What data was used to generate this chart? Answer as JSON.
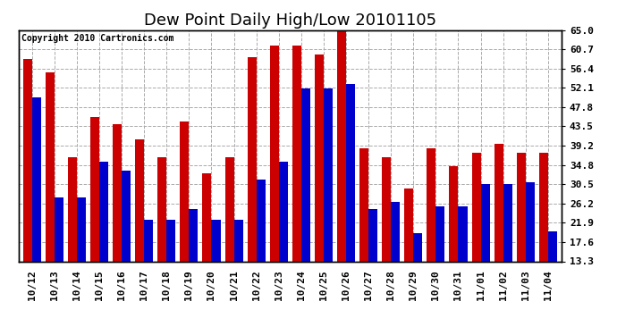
{
  "title": "Dew Point Daily High/Low 20101105",
  "copyright": "Copyright 2010 Cartronics.com",
  "dates": [
    "10/12",
    "10/13",
    "10/14",
    "10/15",
    "10/16",
    "10/17",
    "10/18",
    "10/19",
    "10/20",
    "10/21",
    "10/22",
    "10/23",
    "10/24",
    "10/25",
    "10/26",
    "10/27",
    "10/28",
    "10/29",
    "10/30",
    "10/31",
    "11/01",
    "11/02",
    "11/03",
    "11/04"
  ],
  "highs": [
    58.5,
    55.5,
    36.5,
    45.5,
    44.0,
    40.5,
    36.5,
    44.5,
    33.0,
    36.5,
    59.0,
    61.5,
    61.5,
    59.5,
    65.5,
    38.5,
    36.5,
    29.5,
    38.5,
    34.5,
    37.5,
    39.5,
    37.5,
    37.5
  ],
  "lows": [
    50.0,
    27.5,
    27.5,
    35.5,
    33.5,
    22.5,
    22.5,
    25.0,
    22.5,
    22.5,
    31.5,
    35.5,
    52.0,
    52.0,
    53.0,
    25.0,
    26.5,
    19.5,
    25.5,
    25.5,
    30.5,
    30.5,
    31.0,
    20.0
  ],
  "high_color": "#cc0000",
  "low_color": "#0000cc",
  "bg_color": "#ffffff",
  "ymin": 13.3,
  "ymax": 65.0,
  "yticks": [
    13.3,
    17.6,
    21.9,
    26.2,
    30.5,
    34.8,
    39.2,
    43.5,
    47.8,
    52.1,
    56.4,
    60.7,
    65.0
  ],
  "grid_color": "#aaaaaa",
  "title_fontsize": 13,
  "tick_fontsize": 8,
  "bar_width": 0.4
}
